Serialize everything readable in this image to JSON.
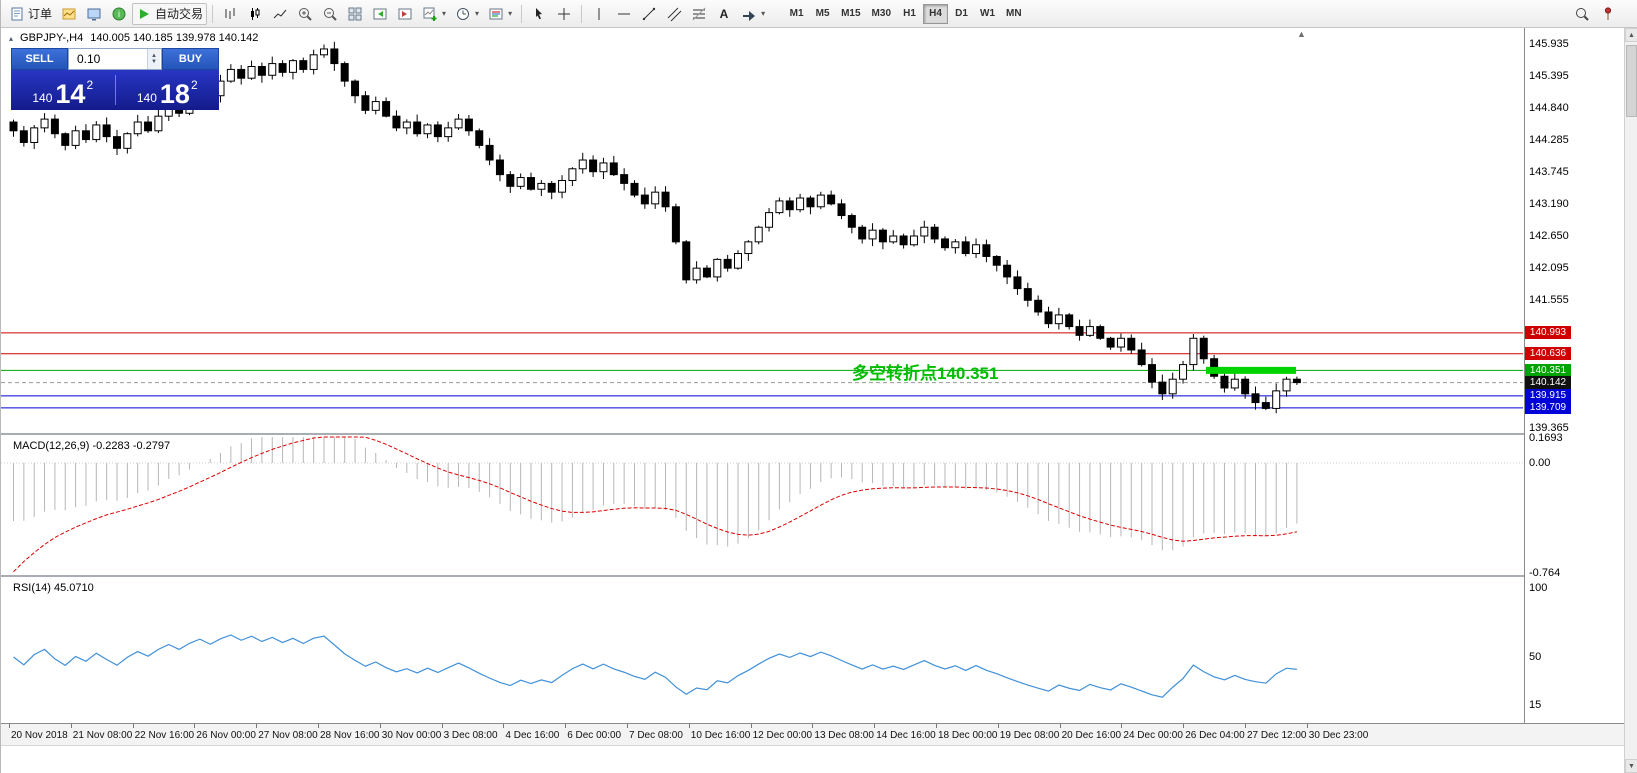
{
  "toolbar": {
    "order_label": "订单",
    "autotrade_label": "自动交易",
    "timeframes": [
      "M1",
      "M5",
      "M15",
      "M30",
      "H1",
      "H4",
      "D1",
      "W1",
      "MN"
    ],
    "active_timeframe": "H4"
  },
  "chart": {
    "title": "GBPJPY-,H4",
    "ohlc": "140.005 140.185 139.978 140.142",
    "annotation": "多空转折点140.351",
    "trade_panel": {
      "sell_label": "SELL",
      "buy_label": "BUY",
      "volume": "0.10",
      "sell_price": {
        "prefix": "140",
        "big": "14",
        "sup": "2"
      },
      "buy_price": {
        "prefix": "140",
        "big": "18",
        "sup": "2"
      }
    },
    "levels": [
      {
        "price": 140.993,
        "label": "140.993",
        "color": "#cf0000"
      },
      {
        "price": 140.636,
        "label": "140.636",
        "color": "#cf0000"
      },
      {
        "price": 140.351,
        "label": "140.351",
        "color": "#00a400"
      },
      {
        "price": 139.915,
        "label": "139.915",
        "color": "#0000d8"
      },
      {
        "price": 139.709,
        "label": "139.709",
        "color": "#0000d8"
      }
    ],
    "highlight_bar": {
      "price": 140.351,
      "color": "#00d400"
    },
    "current_price": {
      "value": 140.142,
      "label": "140.142"
    },
    "axis_ticks": [
      "145.935",
      "145.395",
      "144.840",
      "144.285",
      "143.745",
      "143.190",
      "142.650",
      "142.095",
      "141.555",
      "139.365"
    ],
    "price_max": 145.935,
    "price_min": 139.365
  },
  "macd": {
    "label": "MACD(12,26,9) -0.2283 -0.2797",
    "axis": [
      "0.1693",
      "0.00",
      "-0.764"
    ]
  },
  "rsi": {
    "label": "RSI(14) 45.0710",
    "axis": [
      "100",
      "50",
      "15"
    ]
  },
  "time_axis": [
    "20 Nov 2018",
    "21 Nov 08:00",
    "22 Nov 16:00",
    "26 Nov 00:00",
    "27 Nov 08:00",
    "28 Nov 16:00",
    "30 Nov 00:00",
    "3 Dec 08:00",
    "4 Dec 16:00",
    "6 Dec 00:00",
    "7 Dec 08:00",
    "10 Dec 16:00",
    "12 Dec 00:00",
    "13 Dec 08:00",
    "14 Dec 16:00",
    "18 Dec 00:00",
    "19 Dec 08:00",
    "20 Dec 16:00",
    "24 Dec 00:00",
    "26 Dec 04:00",
    "27 Dec 12:00",
    "30 Dec 23:00"
  ],
  "chart_data": {
    "type": "candlestick",
    "symbol": "GBPJPY-",
    "timeframe": "H4",
    "first_open": 144.6,
    "closes": [
      144.45,
      144.25,
      144.5,
      144.65,
      144.4,
      144.2,
      144.45,
      144.3,
      144.55,
      144.35,
      144.15,
      144.4,
      144.6,
      144.45,
      144.7,
      144.9,
      144.75,
      145.0,
      145.2,
      145.05,
      145.3,
      145.5,
      145.35,
      145.55,
      145.4,
      145.6,
      145.45,
      145.65,
      145.5,
      145.75,
      145.85,
      145.6,
      145.3,
      145.05,
      144.8,
      144.95,
      144.7,
      144.5,
      144.6,
      144.4,
      144.55,
      144.35,
      144.5,
      144.65,
      144.45,
      144.2,
      143.95,
      143.7,
      143.5,
      143.65,
      143.45,
      143.55,
      143.4,
      143.6,
      143.8,
      143.95,
      143.75,
      143.9,
      143.7,
      143.55,
      143.35,
      143.2,
      143.4,
      143.15,
      142.55,
      141.9,
      142.1,
      141.95,
      142.25,
      142.1,
      142.35,
      142.55,
      142.8,
      143.05,
      143.25,
      143.1,
      143.3,
      143.15,
      143.35,
      143.2,
      143.0,
      142.8,
      142.6,
      142.75,
      142.55,
      142.65,
      142.5,
      142.65,
      142.8,
      142.6,
      142.45,
      142.55,
      142.35,
      142.5,
      142.3,
      142.15,
      141.95,
      141.75,
      141.55,
      141.35,
      141.15,
      141.3,
      141.1,
      140.95,
      141.1,
      140.9,
      140.75,
      140.9,
      140.7,
      140.45,
      140.15,
      139.95,
      140.2,
      140.45,
      140.9,
      140.55,
      140.25,
      140.05,
      140.2,
      139.95,
      139.8,
      139.7,
      140.0,
      140.2,
      140.142
    ]
  }
}
